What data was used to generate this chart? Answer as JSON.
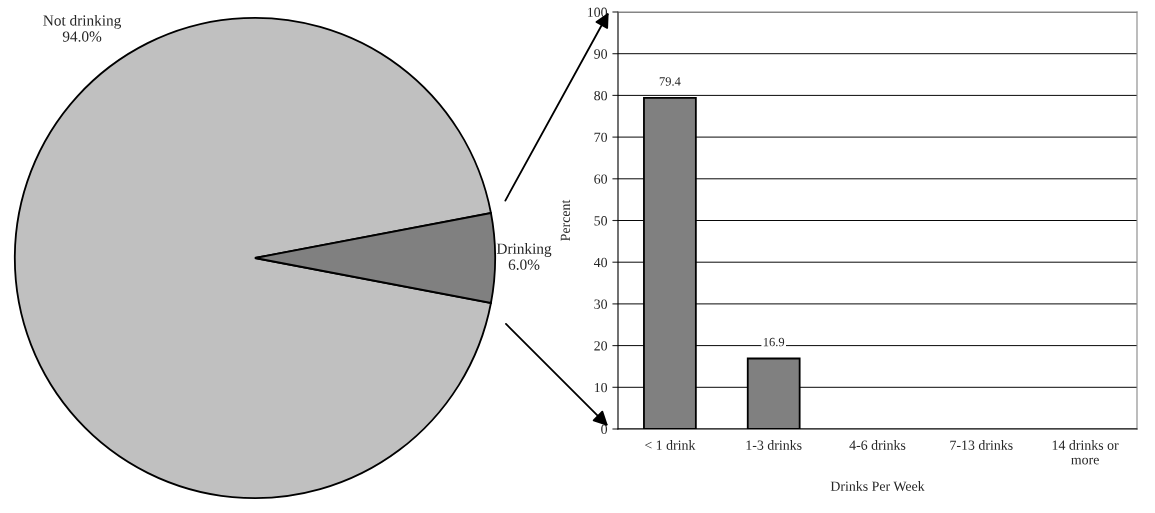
{
  "chart_data": [
    {
      "type": "pie",
      "categories": [
        "Not drinking",
        "Drinking"
      ],
      "values": [
        94.0,
        6.0
      ],
      "colors": [
        "#c0c0c0",
        "#808080"
      ],
      "value_labels": [
        "94.0%",
        "6.0%"
      ],
      "legend": false
    },
    {
      "type": "bar",
      "categories": [
        "< 1 drink",
        "1-3 drinks",
        "4-6 drinks",
        "7-13 drinks",
        "14 drinks or\nmore"
      ],
      "values": [
        79.4,
        16.9,
        null,
        null,
        null
      ],
      "color": "#808080",
      "value_labels": [
        "79.4",
        "16.9",
        null,
        null,
        null
      ],
      "xlabel": "Drinks Per Week",
      "ylabel": "Percent",
      "ylim": [
        0,
        100
      ],
      "yticks": [
        0,
        10,
        20,
        30,
        40,
        50,
        60,
        70,
        80,
        90,
        100
      ],
      "grid": "y",
      "legend": false
    }
  ]
}
